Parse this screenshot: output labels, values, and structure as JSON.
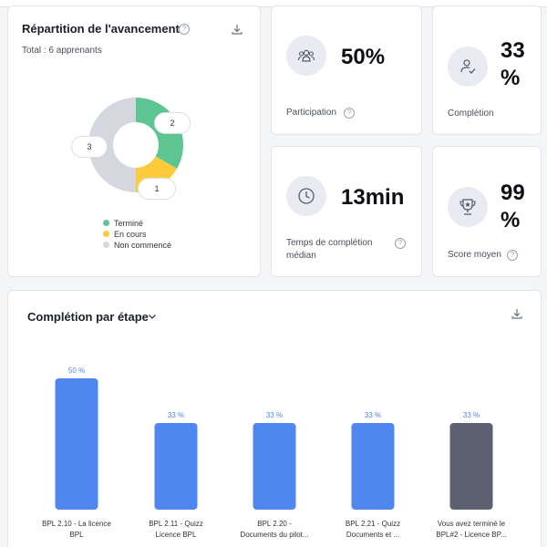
{
  "donut_card": {
    "title": "Répartition de l'avancement",
    "total": "Total : 6 apprenants",
    "help": "?",
    "segments": [
      {
        "label": "Terminé",
        "value": 2,
        "color": "#5cc592"
      },
      {
        "label": "En cours",
        "value": 1,
        "color": "#fccb3c"
      },
      {
        "label": "Non commencé",
        "value": 3,
        "color": "#d4d7dd"
      }
    ],
    "callouts": {
      "termine": "2",
      "en_cours": "1",
      "non_commence": "3"
    }
  },
  "stats": {
    "participation": {
      "value": "50%",
      "label": "Participation",
      "icon": "users-icon"
    },
    "completion": {
      "value": "33 %",
      "label": "Complétion",
      "icon": "user-check-icon"
    },
    "temps": {
      "value": "13min",
      "label": "Temps de complétion médian",
      "icon": "clock-icon"
    },
    "score": {
      "value": "99 %",
      "label": "Score moyen",
      "icon": "trophy-icon"
    }
  },
  "bar_card": {
    "title": "Complétion par étape",
    "dropdown_icon": "chevron-down-icon"
  },
  "chart_data": {
    "type": "bar",
    "categories": [
      "BPL 2.10 - La licence BPL",
      "BPL 2.11 - Quizz Licence BPL",
      "BPL 2.20 - Documents du pilot...",
      "BPL 2.21 - Quizz Documents et ...",
      "Vous avez terminé le BPL#2 - Licence BP..."
    ],
    "category_lines": [
      [
        "BPL 2.10 - La licence",
        "BPL"
      ],
      [
        "BPL 2.11 - Quizz",
        "Licence BPL"
      ],
      [
        "BPL 2.20 -",
        "Documents du pilot..."
      ],
      [
        "BPL 2.21 - Quizz",
        "Documents et ..."
      ],
      [
        "Vous avez terminé le",
        "BPL#2 - Licence BP..."
      ]
    ],
    "values": [
      50,
      33,
      33,
      33,
      33
    ],
    "value_labels": [
      "50 %",
      "33 %",
      "33 %",
      "33 %",
      "33 %"
    ],
    "colors": [
      "#4f86f0",
      "#4f86f0",
      "#4f86f0",
      "#4f86f0",
      "#5c6070"
    ],
    "ylim": [
      0,
      50
    ]
  }
}
